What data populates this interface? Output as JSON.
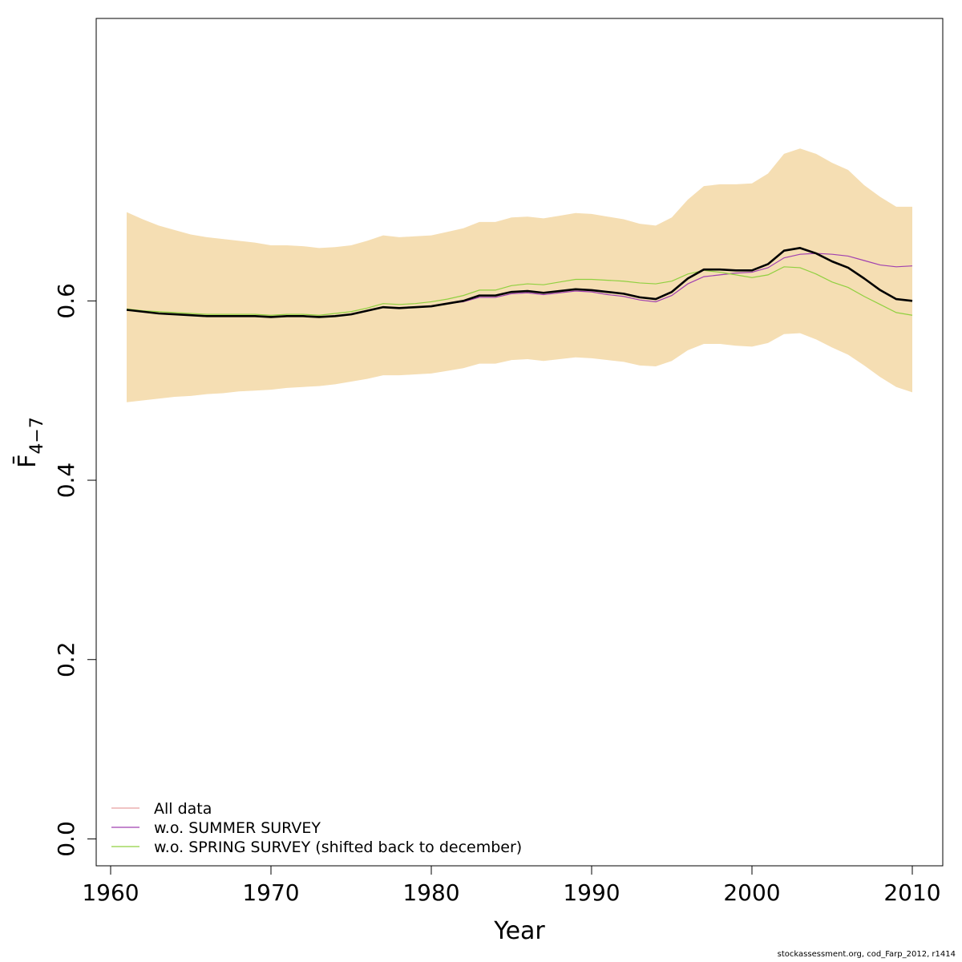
{
  "chart_data": {
    "type": "line",
    "title": "",
    "xlabel": "Year",
    "ylabel": "F̄",
    "ylabel_subscript": "4−7",
    "xlim": [
      1959.1,
      2011.9
    ],
    "ylim": [
      -0.03,
      0.915
    ],
    "xticks": [
      1960,
      1970,
      1980,
      1990,
      2000,
      2010
    ],
    "yticks": [
      0.0,
      0.2,
      0.4,
      0.6
    ],
    "xtick_labels": [
      "1960",
      "1970",
      "1980",
      "1990",
      "2000",
      "2010"
    ],
    "ytick_labels": [
      "0.0",
      "0.2",
      "0.4",
      "0.6"
    ],
    "grid": false,
    "legend_position": "bottom-left",
    "x": [
      1961,
      1962,
      1963,
      1964,
      1965,
      1966,
      1967,
      1968,
      1969,
      1970,
      1971,
      1972,
      1973,
      1974,
      1975,
      1976,
      1977,
      1978,
      1979,
      1980,
      1981,
      1982,
      1983,
      1984,
      1985,
      1986,
      1987,
      1988,
      1989,
      1990,
      1991,
      1992,
      1993,
      1994,
      1995,
      1996,
      1997,
      1998,
      1999,
      2000,
      2001,
      2002,
      2003,
      2004,
      2005,
      2006,
      2007,
      2008,
      2009,
      2010
    ],
    "band": {
      "color": "#F5DEB3",
      "upper": [
        0.699,
        0.691,
        0.684,
        0.679,
        0.674,
        0.671,
        0.669,
        0.667,
        0.665,
        0.662,
        0.662,
        0.661,
        0.659,
        0.66,
        0.662,
        0.667,
        0.673,
        0.671,
        0.672,
        0.673,
        0.677,
        0.681,
        0.688,
        0.688,
        0.693,
        0.694,
        0.692,
        0.695,
        0.698,
        0.697,
        0.694,
        0.691,
        0.686,
        0.684,
        0.693,
        0.713,
        0.728,
        0.73,
        0.73,
        0.731,
        0.742,
        0.764,
        0.77,
        0.764,
        0.754,
        0.746,
        0.729,
        0.716,
        0.705,
        0.705
      ],
      "lower": [
        0.487,
        0.489,
        0.491,
        0.493,
        0.494,
        0.496,
        0.497,
        0.499,
        0.5,
        0.501,
        0.503,
        0.504,
        0.505,
        0.507,
        0.51,
        0.513,
        0.517,
        0.517,
        0.518,
        0.519,
        0.522,
        0.525,
        0.53,
        0.53,
        0.534,
        0.535,
        0.533,
        0.535,
        0.537,
        0.536,
        0.534,
        0.532,
        0.528,
        0.527,
        0.533,
        0.545,
        0.552,
        0.552,
        0.55,
        0.549,
        0.553,
        0.563,
        0.564,
        0.557,
        0.548,
        0.54,
        0.528,
        0.515,
        0.504,
        0.498
      ]
    },
    "main_line": {
      "color": "#000000",
      "values": [
        0.59,
        0.588,
        0.586,
        0.585,
        0.584,
        0.583,
        0.583,
        0.583,
        0.583,
        0.582,
        0.583,
        0.583,
        0.582,
        0.583,
        0.585,
        0.589,
        0.593,
        0.592,
        0.593,
        0.594,
        0.597,
        0.6,
        0.606,
        0.606,
        0.61,
        0.611,
        0.609,
        0.611,
        0.613,
        0.612,
        0.61,
        0.608,
        0.604,
        0.602,
        0.61,
        0.625,
        0.635,
        0.635,
        0.634,
        0.634,
        0.641,
        0.656,
        0.659,
        0.653,
        0.644,
        0.637,
        0.625,
        0.612,
        0.602,
        0.6
      ]
    },
    "series": [
      {
        "name": "All data",
        "color": "#E8A0A0",
        "values": [
          0.59,
          0.588,
          0.586,
          0.585,
          0.584,
          0.583,
          0.583,
          0.583,
          0.583,
          0.582,
          0.583,
          0.583,
          0.582,
          0.583,
          0.585,
          0.589,
          0.593,
          0.592,
          0.593,
          0.594,
          0.597,
          0.6,
          0.606,
          0.606,
          0.61,
          0.611,
          0.609,
          0.611,
          0.613,
          0.612,
          0.61,
          0.608,
          0.604,
          0.602,
          0.61,
          0.625,
          0.635,
          0.635,
          0.634,
          0.634,
          0.641,
          0.656,
          0.659,
          0.653,
          0.644,
          0.637,
          0.625,
          0.612,
          0.602,
          0.6
        ]
      },
      {
        "name": "w.o. SUMMER SURVEY",
        "color": "#A040B0",
        "values": [
          0.59,
          0.588,
          0.586,
          0.585,
          0.584,
          0.583,
          0.583,
          0.583,
          0.583,
          0.582,
          0.583,
          0.583,
          0.582,
          0.583,
          0.585,
          0.589,
          0.593,
          0.592,
          0.593,
          0.594,
          0.597,
          0.599,
          0.604,
          0.604,
          0.608,
          0.609,
          0.607,
          0.609,
          0.611,
          0.61,
          0.607,
          0.605,
          0.601,
          0.599,
          0.606,
          0.619,
          0.627,
          0.629,
          0.631,
          0.632,
          0.637,
          0.648,
          0.652,
          0.653,
          0.652,
          0.65,
          0.645,
          0.64,
          0.638,
          0.639
        ]
      },
      {
        "name": "w.o. SPRING SURVEY (shifted back to december)",
        "color": "#90D040",
        "values": [
          0.591,
          0.589,
          0.588,
          0.587,
          0.586,
          0.585,
          0.585,
          0.585,
          0.585,
          0.584,
          0.585,
          0.585,
          0.584,
          0.586,
          0.588,
          0.592,
          0.597,
          0.596,
          0.597,
          0.599,
          0.602,
          0.606,
          0.612,
          0.612,
          0.617,
          0.619,
          0.618,
          0.621,
          0.624,
          0.624,
          0.623,
          0.622,
          0.62,
          0.619,
          0.622,
          0.63,
          0.634,
          0.632,
          0.629,
          0.626,
          0.629,
          0.638,
          0.637,
          0.63,
          0.621,
          0.615,
          0.605,
          0.596,
          0.587,
          0.584
        ]
      }
    ]
  },
  "credit": "stockassessment.org, cod_Farp_2012, r1414"
}
